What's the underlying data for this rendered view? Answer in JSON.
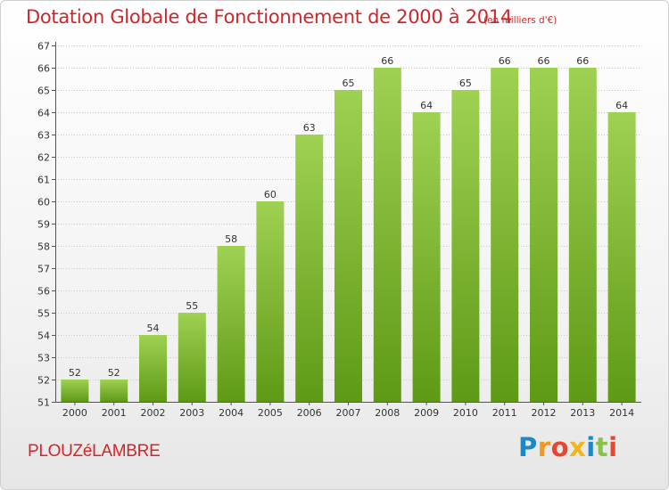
{
  "header": {
    "title": "Dotation Globale de Fonctionnement de 2000 à 2014",
    "unit": "(en milliers d'€)"
  },
  "footer": {
    "commune": "PLOUZéLAMBRE",
    "brand_letters": [
      "P",
      "r",
      "o",
      "x",
      "i",
      "t",
      "i"
    ],
    "brand_colors": [
      "#1e88c7",
      "#f39a1e",
      "#e8462f",
      "#f2b61b",
      "#1e88c7",
      "#8bc34a",
      "#e8462f"
    ]
  },
  "colors": {
    "bar_top": "#9fd152",
    "bar_bottom": "#5e9a16",
    "grid": "#c8c8c8",
    "axis": "#555555",
    "title": "#d0262b"
  },
  "chart_data": {
    "type": "bar",
    "title": "Dotation Globale de Fonctionnement de 2000 à 2014",
    "subtitle": "(en milliers d'€)",
    "categories": [
      "2000",
      "2001",
      "2002",
      "2003",
      "2004",
      "2005",
      "2006",
      "2007",
      "2008",
      "2009",
      "2010",
      "2011",
      "2012",
      "2013",
      "2014"
    ],
    "values": [
      52,
      52,
      54,
      55,
      58,
      60,
      63,
      65,
      66,
      64,
      65,
      66,
      66,
      66,
      64
    ],
    "ylim": [
      51,
      67
    ],
    "yticks": [
      51,
      52,
      53,
      54,
      55,
      56,
      57,
      58,
      59,
      60,
      61,
      62,
      63,
      64,
      65,
      66,
      67
    ],
    "xlabel": "",
    "ylabel": "",
    "grid": true
  }
}
